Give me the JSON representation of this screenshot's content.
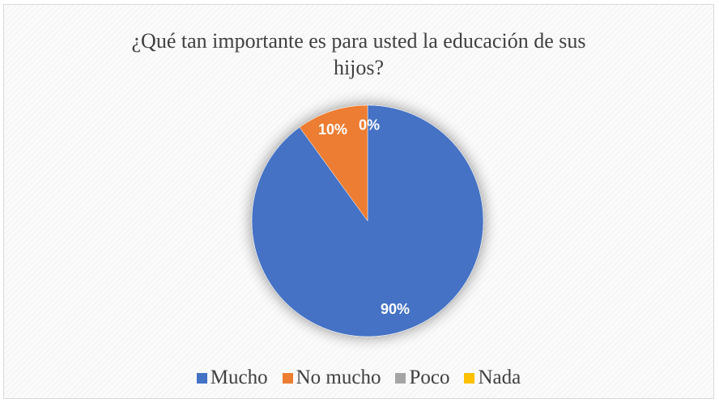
{
  "chart_data": {
    "type": "pie",
    "title_lines": [
      "¿Qué tan importante es para usted la educación de sus",
      "hijos?"
    ],
    "categories": [
      "Mucho",
      "No mucho",
      "Poco",
      "Nada"
    ],
    "values": [
      90,
      10,
      0,
      0
    ],
    "data_labels": [
      "90%",
      "10%",
      "0%",
      "0%"
    ],
    "colors": [
      "#4472c4",
      "#ed7d31",
      "#a5a5a5",
      "#ffc000"
    ],
    "legend_position": "bottom"
  }
}
